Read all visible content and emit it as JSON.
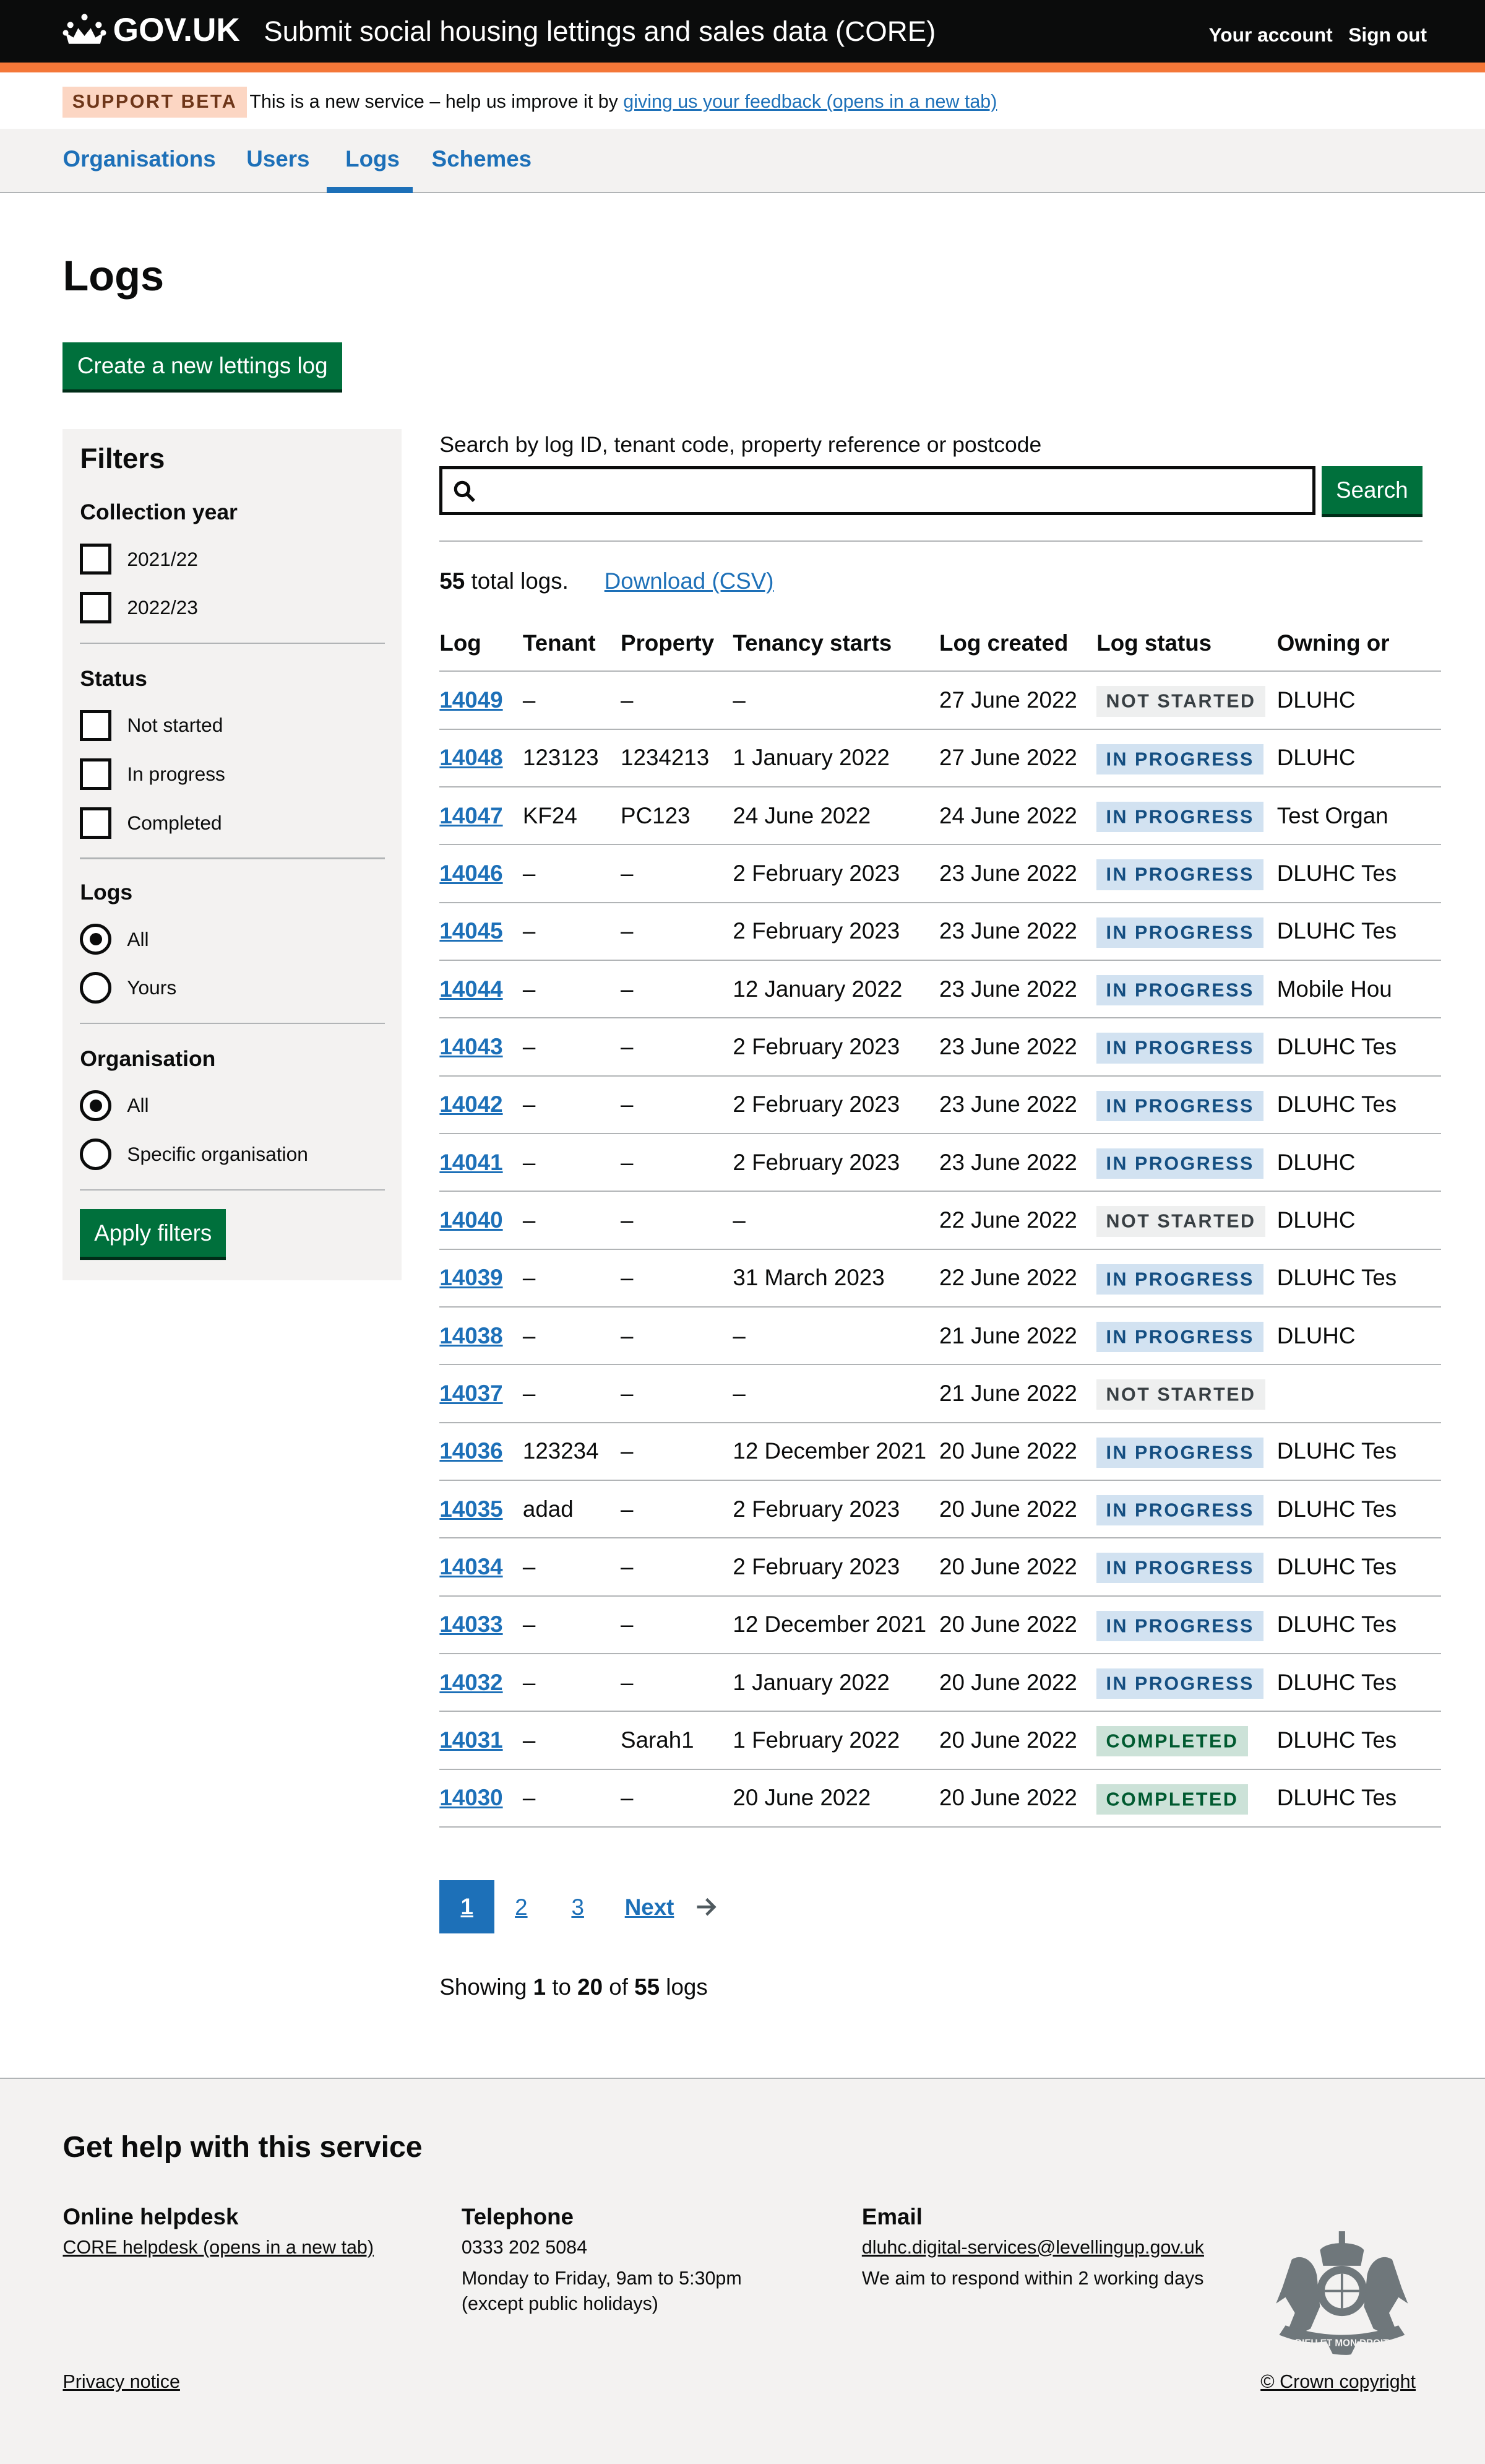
{
  "header": {
    "logo": "GOV.UK",
    "service": "Submit social housing lettings and sales data (CORE)",
    "your_account": "Your account",
    "sign_out": "Sign out"
  },
  "banner": {
    "tag": "SUPPORT BETA",
    "text": "This is a new service – help us improve it by ",
    "link": "giving us your feedback (opens in a new tab)"
  },
  "nav": {
    "items": [
      {
        "label": "Organisations"
      },
      {
        "label": "Users"
      },
      {
        "label": "Logs",
        "active": true
      },
      {
        "label": "Schemes"
      }
    ]
  },
  "page": {
    "title": "Logs",
    "create_button": "Create a new lettings log"
  },
  "filters": {
    "title": "Filters",
    "collection_year": {
      "label": "Collection year",
      "options": [
        "2021/22",
        "2022/23"
      ]
    },
    "status": {
      "label": "Status",
      "options": [
        "Not started",
        "In progress",
        "Completed"
      ]
    },
    "logs": {
      "label": "Logs",
      "options": [
        "All",
        "Yours"
      ],
      "selected": "All"
    },
    "organisation": {
      "label": "Organisation",
      "options": [
        "All",
        "Specific organisation"
      ],
      "selected": "All"
    },
    "apply": "Apply filters"
  },
  "search": {
    "label": "Search by log ID, tenant code, property reference or postcode",
    "value": "",
    "button": "Search"
  },
  "summary": {
    "count": "55",
    "count_text": " total logs.",
    "download": "Download (CSV)"
  },
  "table": {
    "headers": [
      "Log",
      "Tenant",
      "Property",
      "Tenancy starts",
      "Log created",
      "Log status",
      "Owning or"
    ],
    "rows": [
      {
        "id": "14049",
        "tenant": "–",
        "property": "–",
        "starts": "–",
        "created": "27 June 2022",
        "status": "NOT STARTED",
        "owner": "DLUHC"
      },
      {
        "id": "14048",
        "tenant": "123123",
        "property": "1234213",
        "starts": "1 January 2022",
        "created": "27 June 2022",
        "status": "IN PROGRESS",
        "owner": "DLUHC"
      },
      {
        "id": "14047",
        "tenant": "KF24",
        "property": "PC123",
        "starts": "24 June 2022",
        "created": "24 June 2022",
        "status": "IN PROGRESS",
        "owner": "Test Organ"
      },
      {
        "id": "14046",
        "tenant": "–",
        "property": "–",
        "starts": "2 February 2023",
        "created": "23 June 2022",
        "status": "IN PROGRESS",
        "owner": "DLUHC Tes"
      },
      {
        "id": "14045",
        "tenant": "–",
        "property": "–",
        "starts": "2 February 2023",
        "created": "23 June 2022",
        "status": "IN PROGRESS",
        "owner": "DLUHC Tes"
      },
      {
        "id": "14044",
        "tenant": "–",
        "property": "–",
        "starts": "12 January 2022",
        "created": "23 June 2022",
        "status": "IN PROGRESS",
        "owner": "Mobile Hou"
      },
      {
        "id": "14043",
        "tenant": "–",
        "property": "–",
        "starts": "2 February 2023",
        "created": "23 June 2022",
        "status": "IN PROGRESS",
        "owner": "DLUHC Tes"
      },
      {
        "id": "14042",
        "tenant": "–",
        "property": "–",
        "starts": "2 February 2023",
        "created": "23 June 2022",
        "status": "IN PROGRESS",
        "owner": "DLUHC Tes"
      },
      {
        "id": "14041",
        "tenant": "–",
        "property": "–",
        "starts": "2 February 2023",
        "created": "23 June 2022",
        "status": "IN PROGRESS",
        "owner": "DLUHC"
      },
      {
        "id": "14040",
        "tenant": "–",
        "property": "–",
        "starts": "–",
        "created": "22 June 2022",
        "status": "NOT STARTED",
        "owner": "DLUHC"
      },
      {
        "id": "14039",
        "tenant": "–",
        "property": "–",
        "starts": "31 March 2023",
        "created": "22 June 2022",
        "status": "IN PROGRESS",
        "owner": "DLUHC Tes"
      },
      {
        "id": "14038",
        "tenant": "–",
        "property": "–",
        "starts": "–",
        "created": "21 June 2022",
        "status": "IN PROGRESS",
        "owner": "DLUHC"
      },
      {
        "id": "14037",
        "tenant": "–",
        "property": "–",
        "starts": "–",
        "created": "21 June 2022",
        "status": "NOT STARTED",
        "owner": ""
      },
      {
        "id": "14036",
        "tenant": "123234",
        "property": "–",
        "starts": "12 December 2021",
        "created": "20 June 2022",
        "status": "IN PROGRESS",
        "owner": "DLUHC Tes"
      },
      {
        "id": "14035",
        "tenant": "adad",
        "property": "–",
        "starts": "2 February 2023",
        "created": "20 June 2022",
        "status": "IN PROGRESS",
        "owner": "DLUHC Tes"
      },
      {
        "id": "14034",
        "tenant": "–",
        "property": "–",
        "starts": "2 February 2023",
        "created": "20 June 2022",
        "status": "IN PROGRESS",
        "owner": "DLUHC Tes"
      },
      {
        "id": "14033",
        "tenant": "–",
        "property": "–",
        "starts": "12 December 2021",
        "created": "20 June 2022",
        "status": "IN PROGRESS",
        "owner": "DLUHC Tes"
      },
      {
        "id": "14032",
        "tenant": "–",
        "property": "–",
        "starts": "1 January 2022",
        "created": "20 June 2022",
        "status": "IN PROGRESS",
        "owner": "DLUHC Tes"
      },
      {
        "id": "14031",
        "tenant": "–",
        "property": "Sarah1",
        "starts": "1 February 2022",
        "created": "20 June 2022",
        "status": "COMPLETED",
        "owner": "DLUHC Tes"
      },
      {
        "id": "14030",
        "tenant": "–",
        "property": "–",
        "starts": "20 June 2022",
        "created": "20 June 2022",
        "status": "COMPLETED",
        "owner": "DLUHC Tes"
      }
    ]
  },
  "pagination": {
    "pages": [
      "1",
      "2",
      "3"
    ],
    "current": "1",
    "next": "Next"
  },
  "showing": {
    "prefix": "Showing ",
    "from": "1",
    "to_word": " to ",
    "to": "20",
    "of_word": " of ",
    "total": "55",
    "suffix": " logs"
  },
  "footer": {
    "title": "Get help with this service",
    "helpdesk": {
      "title": "Online helpdesk",
      "link": "CORE helpdesk (opens in a new tab)"
    },
    "telephone": {
      "title": "Telephone",
      "number": "0333 202 5084",
      "hours": "Monday to Friday, 9am to 5:30pm",
      "note": "(except public holidays)"
    },
    "email": {
      "title": "Email",
      "address": "dluhc.digital-services@levellingup.gov.uk",
      "note": "We aim to respond within 2 working days"
    },
    "privacy": "Privacy notice",
    "copyright": "© Crown copyright",
    "crest_text": "DIEU ET MON DROIT"
  },
  "colors": {
    "header": "#0b0c0c",
    "accent": "#f47738",
    "link": "#1d70b8",
    "button": "#00703c"
  }
}
